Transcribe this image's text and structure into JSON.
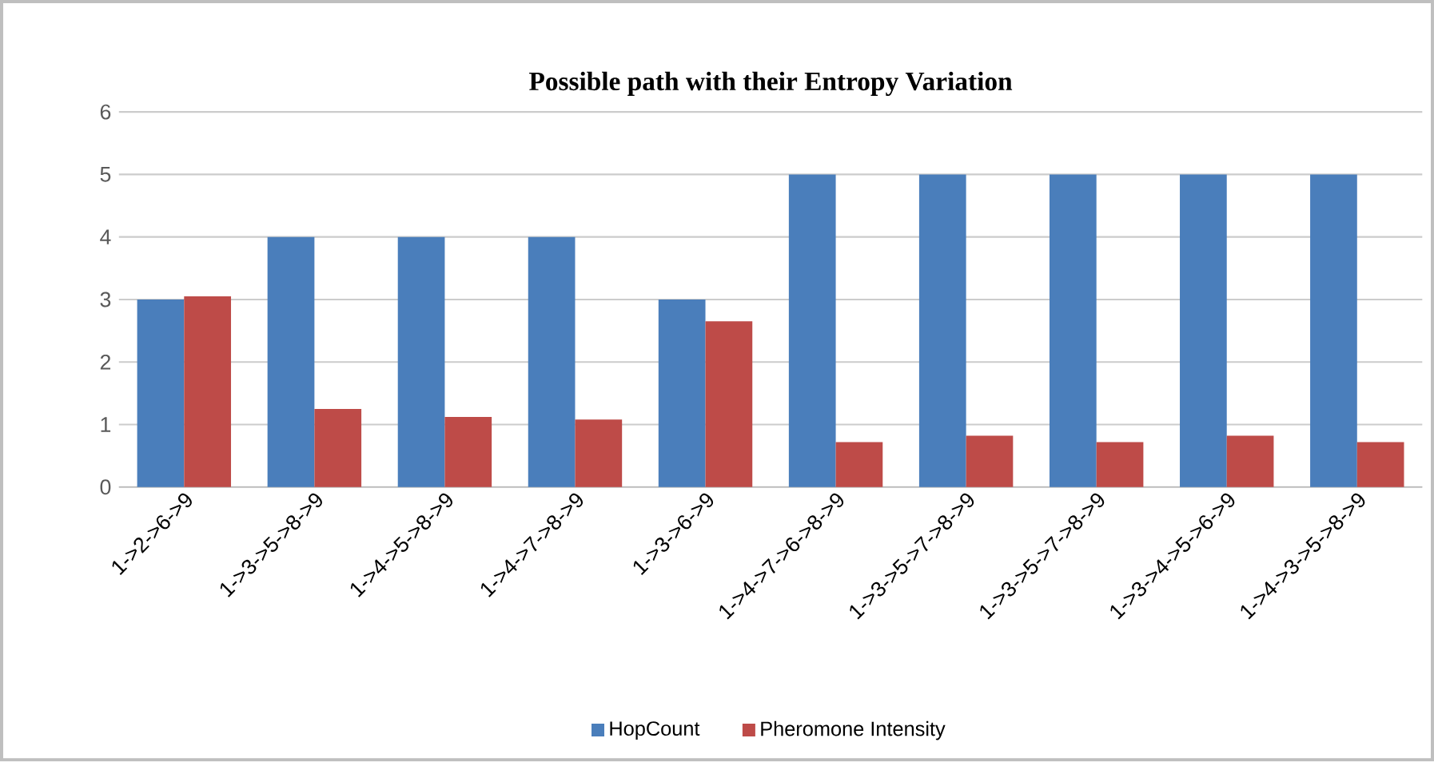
{
  "chart_data": {
    "type": "bar",
    "title": "Possible path with their Entropy Variation",
    "categories": [
      "1->2->6->9",
      "1->3->5->8->9",
      "1->4->5->8->9",
      "1->4->7->8->9",
      "1->3->6->9",
      "1->4->7->6->8->9",
      "1->3->5->7->8->9",
      "1->3->5->7->8->9",
      "1->3->4->5->6->9",
      "1->4->3->5->8->9"
    ],
    "series": [
      {
        "name": "HopCount",
        "color": "#4a7ebb",
        "values": [
          3,
          4,
          4,
          4,
          3,
          5,
          5,
          5,
          5,
          5
        ]
      },
      {
        "name": "Pheromone  Intensity",
        "color": "#be4b48",
        "values": [
          3.05,
          1.25,
          1.12,
          1.08,
          2.65,
          0.72,
          0.82,
          0.72,
          0.82,
          0.72
        ]
      }
    ],
    "ylim": [
      0,
      6
    ],
    "yticks": [
      0,
      1,
      2,
      3,
      4,
      5,
      6
    ],
    "grid": "y",
    "legend": "bottom"
  }
}
